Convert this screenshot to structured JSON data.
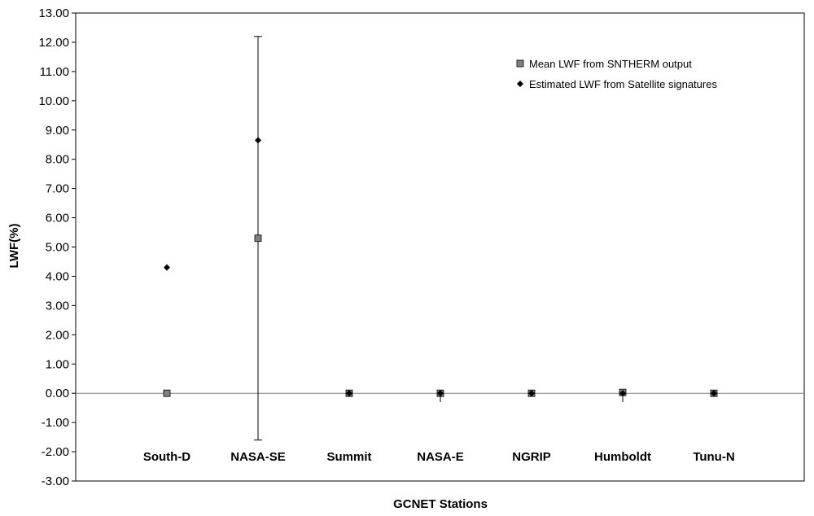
{
  "chart_data": {
    "type": "scatter",
    "title": "",
    "xlabel": "GCNET Stations",
    "ylabel": "LWF(%)",
    "ylim": [
      -3,
      13
    ],
    "ytick_step": 1,
    "ytick_labels": [
      "-3.00",
      "-2.00",
      "-1.00",
      "0.00",
      "1.00",
      "2.00",
      "3.00",
      "4.00",
      "5.00",
      "6.00",
      "7.00",
      "8.00",
      "9.00",
      "10.00",
      "11.00",
      "12.00",
      "13.00"
    ],
    "categories": [
      "South-D",
      "NASA-SE",
      "Summit",
      "NASA-E",
      "NGRIP",
      "Humboldt",
      "Tunu-N"
    ],
    "grid": false,
    "zero_line": true,
    "legend_position": "top-right",
    "series": [
      {
        "name": "Mean LWF from SNTHERM output",
        "marker": "square",
        "color": "#808080",
        "values": [
          0.0,
          5.3,
          0.0,
          0.0,
          0.0,
          0.03,
          0.0
        ],
        "error_low": [
          0.0,
          -1.6,
          0.0,
          -0.3,
          0.0,
          -0.3,
          0.0
        ],
        "error_high": [
          0.0,
          12.2,
          0.0,
          0.0,
          0.0,
          0.1,
          0.0
        ]
      },
      {
        "name": "Estimated LWF from Satellite signatures",
        "marker": "diamond",
        "color": "#000000",
        "values": [
          4.3,
          8.65,
          0.0,
          0.0,
          0.0,
          0.0,
          0.0
        ]
      }
    ]
  }
}
